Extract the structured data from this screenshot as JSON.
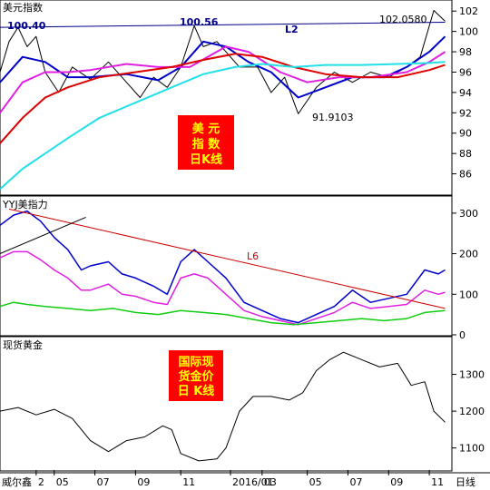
{
  "app": {
    "footer_label": "威尔鑫",
    "timeframe_label": "日线"
  },
  "panels": {
    "usd": {
      "title": "美元指数",
      "badge_lines": [
        "美  元",
        "指  数",
        "日K线"
      ],
      "labels": {
        "left_high": "100.40",
        "mid_high": "100.56",
        "right_high": "102.0580",
        "low": "91.9103",
        "line": "L2"
      }
    },
    "yyj": {
      "title": "YYJ美指力",
      "line_label": "L6"
    },
    "gold": {
      "title": "现货黄金",
      "badge_lines": [
        "国际现",
        "货金价",
        "日 K线"
      ]
    }
  },
  "colors": {
    "background": "#ffffff",
    "axis": "#000000",
    "badge_bg": "#ff0000",
    "badge_text": "#ffff00",
    "price": "#000000",
    "ma_blue": "#0000cc",
    "ma_magenta": "#e020e0",
    "ma_red": "#dd0000",
    "ma_cyan": "#22e0e8",
    "line_l2": "#000088",
    "line_l6": "#cc0000",
    "green": "#11cc11"
  },
  "x_axis": {
    "ticks": [
      {
        "label": "2",
        "pos": 0.08
      },
      {
        "label": "05",
        "pos": 0.12
      },
      {
        "label": "07",
        "pos": 0.21
      },
      {
        "label": "09",
        "pos": 0.3
      },
      {
        "label": "11",
        "pos": 0.4
      },
      {
        "label": "2016/01",
        "pos": 0.51
      },
      {
        "label": "03",
        "pos": 0.58
      },
      {
        "label": "05",
        "pos": 0.68
      },
      {
        "label": "07",
        "pos": 0.77
      },
      {
        "label": "09",
        "pos": 0.86
      },
      {
        "label": "11",
        "pos": 0.95
      }
    ]
  },
  "chart_data": [
    {
      "type": "line",
      "title": "美元指数",
      "ylim": [
        84,
        103
      ],
      "yticks": [
        86,
        88,
        90,
        92,
        94,
        96,
        98,
        100,
        102
      ],
      "series": [
        {
          "role": "price",
          "points": [
            [
              0,
              96
            ],
            [
              0.02,
              99
            ],
            [
              0.04,
              100.4
            ],
            [
              0.06,
              98.5
            ],
            [
              0.08,
              99.5
            ],
            [
              0.1,
              96
            ],
            [
              0.13,
              94
            ],
            [
              0.16,
              96.5
            ],
            [
              0.2,
              95.3
            ],
            [
              0.24,
              97
            ],
            [
              0.28,
              95
            ],
            [
              0.31,
              93.5
            ],
            [
              0.34,
              95.5
            ],
            [
              0.37,
              94.5
            ],
            [
              0.4,
              96.5
            ],
            [
              0.43,
              100.56
            ],
            [
              0.45,
              98.5
            ],
            [
              0.48,
              99
            ],
            [
              0.5,
              98
            ],
            [
              0.53,
              96.5
            ],
            [
              0.57,
              96.5
            ],
            [
              0.6,
              94
            ],
            [
              0.63,
              95.5
            ],
            [
              0.66,
              91.9
            ],
            [
              0.7,
              94.5
            ],
            [
              0.74,
              96
            ],
            [
              0.78,
              95
            ],
            [
              0.82,
              96
            ],
            [
              0.86,
              95.5
            ],
            [
              0.9,
              96.5
            ],
            [
              0.93,
              97.5
            ],
            [
              0.96,
              102.06
            ],
            [
              0.985,
              101
            ]
          ]
        },
        {
          "role": "ma_blue",
          "points": [
            [
              0,
              95
            ],
            [
              0.05,
              97.5
            ],
            [
              0.1,
              97
            ],
            [
              0.15,
              95.5
            ],
            [
              0.2,
              95.5
            ],
            [
              0.28,
              95.8
            ],
            [
              0.35,
              95.2
            ],
            [
              0.4,
              96.5
            ],
            [
              0.45,
              99
            ],
            [
              0.5,
              98.5
            ],
            [
              0.55,
              97
            ],
            [
              0.6,
              96
            ],
            [
              0.66,
              93.5
            ],
            [
              0.72,
              94.5
            ],
            [
              0.78,
              95.5
            ],
            [
              0.85,
              95.5
            ],
            [
              0.9,
              96.5
            ],
            [
              0.95,
              98
            ],
            [
              0.985,
              99.5
            ]
          ]
        },
        {
          "role": "ma_magenta",
          "points": [
            [
              0,
              92
            ],
            [
              0.05,
              95
            ],
            [
              0.1,
              96
            ],
            [
              0.15,
              96
            ],
            [
              0.2,
              96.2
            ],
            [
              0.28,
              96.8
            ],
            [
              0.35,
              96.5
            ],
            [
              0.42,
              96.5
            ],
            [
              0.5,
              98.5
            ],
            [
              0.55,
              98
            ],
            [
              0.62,
              96
            ],
            [
              0.68,
              95
            ],
            [
              0.75,
              95.5
            ],
            [
              0.82,
              95.5
            ],
            [
              0.9,
              96
            ],
            [
              0.95,
              97
            ],
            [
              0.985,
              98
            ]
          ]
        },
        {
          "role": "ma_red",
          "points": [
            [
              0,
              89
            ],
            [
              0.05,
              91.5
            ],
            [
              0.1,
              93.5
            ],
            [
              0.15,
              94.5
            ],
            [
              0.22,
              95.5
            ],
            [
              0.3,
              96
            ],
            [
              0.38,
              96.5
            ],
            [
              0.45,
              97.2
            ],
            [
              0.52,
              97.8
            ],
            [
              0.58,
              97.5
            ],
            [
              0.65,
              96.5
            ],
            [
              0.72,
              95.8
            ],
            [
              0.8,
              95.5
            ],
            [
              0.88,
              95.5
            ],
            [
              0.95,
              96.2
            ],
            [
              0.985,
              96.7
            ]
          ]
        },
        {
          "role": "ma_cyan",
          "points": [
            [
              0,
              84.5
            ],
            [
              0.05,
              86.5
            ],
            [
              0.1,
              88
            ],
            [
              0.15,
              89.5
            ],
            [
              0.22,
              91.5
            ],
            [
              0.3,
              93
            ],
            [
              0.38,
              94.5
            ],
            [
              0.45,
              95.8
            ],
            [
              0.52,
              96.5
            ],
            [
              0.58,
              96.8
            ],
            [
              0.65,
              96.5
            ],
            [
              0.72,
              96.7
            ],
            [
              0.8,
              96.7
            ],
            [
              0.88,
              96.8
            ],
            [
              0.95,
              96.9
            ],
            [
              0.985,
              97
            ]
          ]
        },
        {
          "role": "line_l2",
          "points": [
            [
              0,
              100.4
            ],
            [
              0.985,
              100.9
            ]
          ]
        }
      ]
    },
    {
      "type": "line",
      "title": "YYJ美指力",
      "ylim": [
        0,
        340
      ],
      "yticks": [
        0,
        100,
        200,
        300
      ],
      "series": [
        {
          "role": "blue",
          "points": [
            [
              0,
              270
            ],
            [
              0.03,
              295
            ],
            [
              0.06,
              305
            ],
            [
              0.09,
              280
            ],
            [
              0.12,
              240
            ],
            [
              0.15,
              210
            ],
            [
              0.18,
              160
            ],
            [
              0.2,
              170
            ],
            [
              0.24,
              180
            ],
            [
              0.27,
              150
            ],
            [
              0.3,
              140
            ],
            [
              0.34,
              120
            ],
            [
              0.37,
              100
            ],
            [
              0.4,
              180
            ],
            [
              0.43,
              210
            ],
            [
              0.46,
              180
            ],
            [
              0.5,
              140
            ],
            [
              0.54,
              80
            ],
            [
              0.58,
              60
            ],
            [
              0.62,
              40
            ],
            [
              0.66,
              30
            ],
            [
              0.7,
              50
            ],
            [
              0.74,
              70
            ],
            [
              0.78,
              110
            ],
            [
              0.82,
              80
            ],
            [
              0.86,
              90
            ],
            [
              0.9,
              100
            ],
            [
              0.94,
              160
            ],
            [
              0.97,
              150
            ],
            [
              0.985,
              160
            ]
          ]
        },
        {
          "role": "magenta",
          "points": [
            [
              0,
              190
            ],
            [
              0.03,
              205
            ],
            [
              0.06,
              205
            ],
            [
              0.09,
              185
            ],
            [
              0.12,
              160
            ],
            [
              0.15,
              140
            ],
            [
              0.18,
              110
            ],
            [
              0.2,
              110
            ],
            [
              0.24,
              125
            ],
            [
              0.27,
              100
            ],
            [
              0.3,
              95
            ],
            [
              0.34,
              80
            ],
            [
              0.37,
              75
            ],
            [
              0.4,
              140
            ],
            [
              0.43,
              150
            ],
            [
              0.46,
              140
            ],
            [
              0.5,
              100
            ],
            [
              0.54,
              60
            ],
            [
              0.58,
              45
            ],
            [
              0.62,
              35
            ],
            [
              0.66,
              25
            ],
            [
              0.7,
              40
            ],
            [
              0.74,
              55
            ],
            [
              0.78,
              80
            ],
            [
              0.82,
              65
            ],
            [
              0.86,
              70
            ],
            [
              0.9,
              75
            ],
            [
              0.94,
              110
            ],
            [
              0.97,
              100
            ],
            [
              0.985,
              105
            ]
          ]
        },
        {
          "role": "green",
          "points": [
            [
              0,
              70
            ],
            [
              0.03,
              80
            ],
            [
              0.06,
              75
            ],
            [
              0.1,
              70
            ],
            [
              0.15,
              65
            ],
            [
              0.2,
              60
            ],
            [
              0.25,
              65
            ],
            [
              0.3,
              55
            ],
            [
              0.35,
              50
            ],
            [
              0.4,
              60
            ],
            [
              0.45,
              55
            ],
            [
              0.5,
              50
            ],
            [
              0.55,
              40
            ],
            [
              0.6,
              30
            ],
            [
              0.65,
              25
            ],
            [
              0.7,
              30
            ],
            [
              0.75,
              35
            ],
            [
              0.8,
              40
            ],
            [
              0.85,
              35
            ],
            [
              0.9,
              40
            ],
            [
              0.94,
              55
            ],
            [
              0.985,
              60
            ]
          ]
        },
        {
          "role": "line_l6",
          "points": [
            [
              0.02,
              310
            ],
            [
              0.985,
              65
            ]
          ]
        },
        {
          "role": "trend_black",
          "points": [
            [
              0.0,
              200
            ],
            [
              0.19,
              290
            ]
          ]
        }
      ]
    },
    {
      "type": "line",
      "title": "现货黄金",
      "ylim": [
        1040,
        1400
      ],
      "yticks": [
        1100,
        1200,
        1300
      ],
      "series": [
        {
          "role": "price",
          "points": [
            [
              0,
              1200
            ],
            [
              0.04,
              1210
            ],
            [
              0.08,
              1190
            ],
            [
              0.12,
              1205
            ],
            [
              0.16,
              1180
            ],
            [
              0.2,
              1120
            ],
            [
              0.24,
              1090
            ],
            [
              0.28,
              1120
            ],
            [
              0.32,
              1130
            ],
            [
              0.36,
              1160
            ],
            [
              0.38,
              1150
            ],
            [
              0.4,
              1085
            ],
            [
              0.44,
              1065
            ],
            [
              0.48,
              1070
            ],
            [
              0.5,
              1100
            ],
            [
              0.53,
              1200
            ],
            [
              0.56,
              1240
            ],
            [
              0.6,
              1240
            ],
            [
              0.64,
              1230
            ],
            [
              0.67,
              1250
            ],
            [
              0.7,
              1310
            ],
            [
              0.73,
              1340
            ],
            [
              0.76,
              1360
            ],
            [
              0.8,
              1340
            ],
            [
              0.84,
              1320
            ],
            [
              0.88,
              1330
            ],
            [
              0.91,
              1270
            ],
            [
              0.94,
              1280
            ],
            [
              0.96,
              1200
            ],
            [
              0.985,
              1170
            ]
          ]
        }
      ]
    }
  ]
}
